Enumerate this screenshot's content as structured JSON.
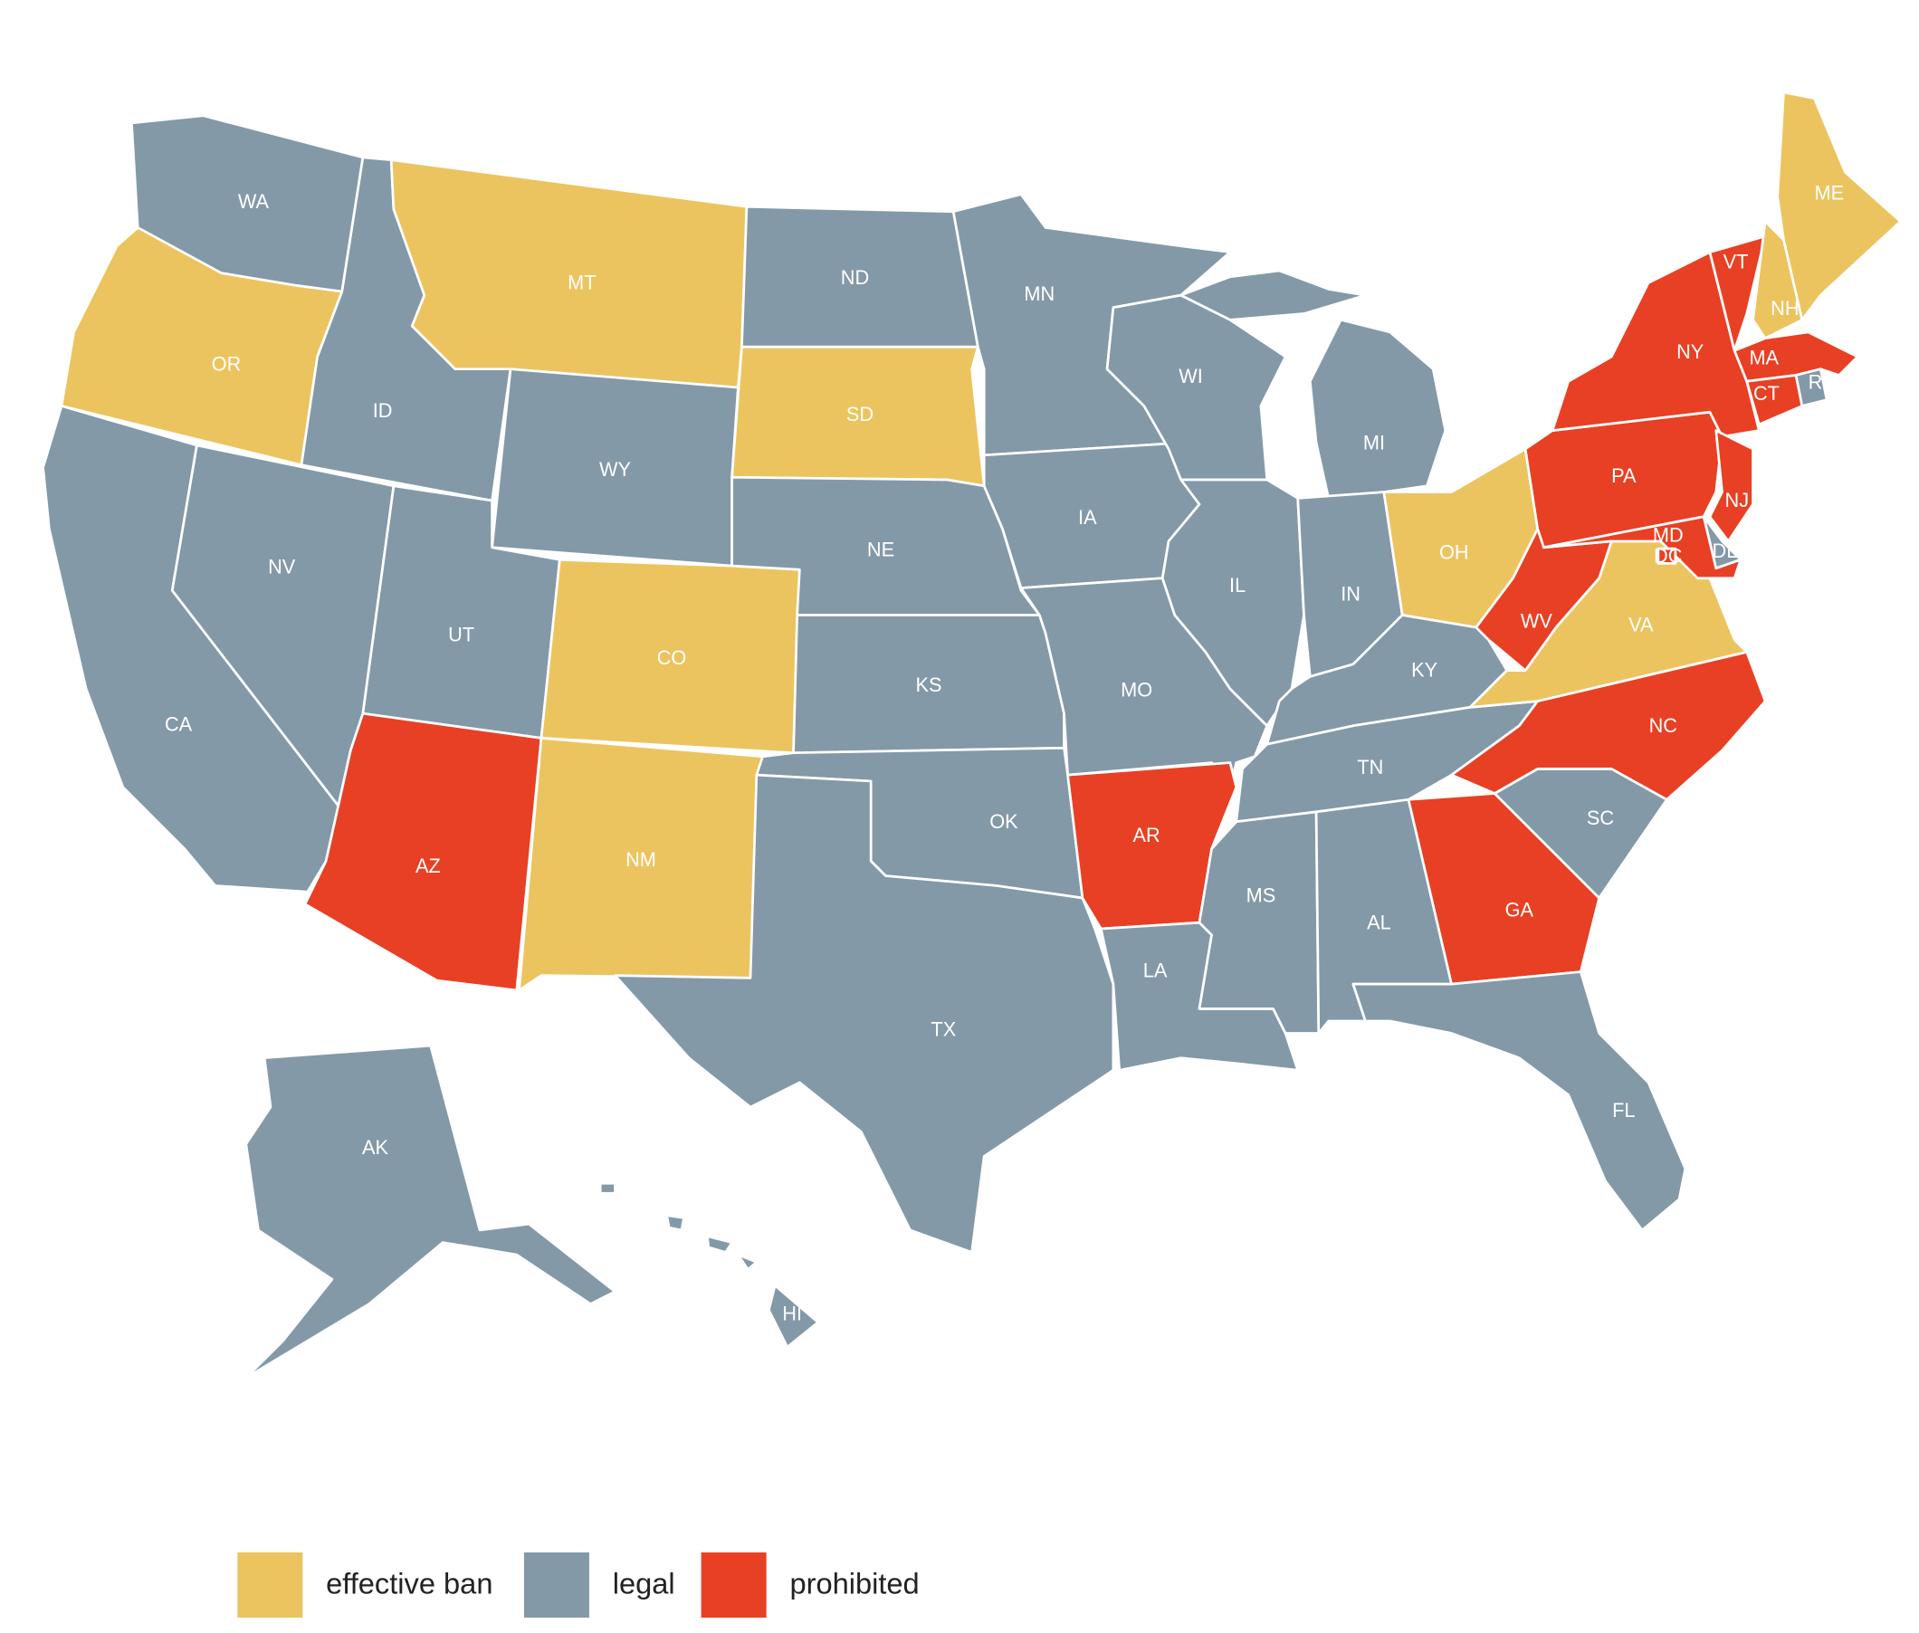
{
  "legend": [
    {
      "label": "effective ban",
      "color": "#ecc45f"
    },
    {
      "label": "legal",
      "color": "#8399a8"
    },
    {
      "label": "prohibited",
      "color": "#e84024"
    }
  ],
  "states": [
    {
      "label": "WA",
      "category": 1
    },
    {
      "label": "OR",
      "category": 0
    },
    {
      "label": "CA",
      "category": 1
    },
    {
      "label": "NV",
      "category": 1
    },
    {
      "label": "ID",
      "category": 1
    },
    {
      "label": "MT",
      "category": 0
    },
    {
      "label": "WY",
      "category": 1
    },
    {
      "label": "UT",
      "category": 1
    },
    {
      "label": "AZ",
      "category": 2
    },
    {
      "label": "CO",
      "category": 0
    },
    {
      "label": "NM",
      "category": 0
    },
    {
      "label": "ND",
      "category": 1
    },
    {
      "label": "SD",
      "category": 0
    },
    {
      "label": "NE",
      "category": 1
    },
    {
      "label": "KS",
      "category": 1
    },
    {
      "label": "OK",
      "category": 1
    },
    {
      "label": "TX",
      "category": 1
    },
    {
      "label": "MN",
      "category": 1
    },
    {
      "label": "IA",
      "category": 1
    },
    {
      "label": "MO",
      "category": 1
    },
    {
      "label": "AR",
      "category": 2
    },
    {
      "label": "LA",
      "category": 1
    },
    {
      "label": "WI",
      "category": 1
    },
    {
      "label": "IL",
      "category": 1
    },
    {
      "label": "MI",
      "category": 1
    },
    {
      "label": "IN",
      "category": 1
    },
    {
      "label": "OH",
      "category": 0
    },
    {
      "label": "KY",
      "category": 1
    },
    {
      "label": "TN",
      "category": 1
    },
    {
      "label": "MS",
      "category": 1
    },
    {
      "label": "AL",
      "category": 1
    },
    {
      "label": "GA",
      "category": 2
    },
    {
      "label": "FL",
      "category": 1
    },
    {
      "label": "SC",
      "category": 1
    },
    {
      "label": "NC",
      "category": 2
    },
    {
      "label": "VA",
      "category": 0
    },
    {
      "label": "WV",
      "category": 2
    },
    {
      "label": "PA",
      "category": 2
    },
    {
      "label": "NY",
      "category": 2
    },
    {
      "label": "VT",
      "category": 2
    },
    {
      "label": "NH",
      "category": 0
    },
    {
      "label": "ME",
      "category": 0
    },
    {
      "label": "MA",
      "category": 2
    },
    {
      "label": "CT",
      "category": 2
    },
    {
      "label": "RI",
      "category": 1
    },
    {
      "label": "NJ",
      "category": 2
    },
    {
      "label": "DE",
      "category": 1
    },
    {
      "label": "MD",
      "category": 2
    },
    {
      "label": "DC",
      "category": 2
    },
    {
      "label": "AK",
      "category": 1
    },
    {
      "label": "HI",
      "category": 1
    }
  ]
}
